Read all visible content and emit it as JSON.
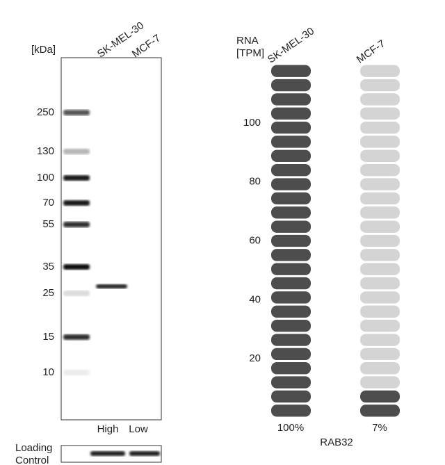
{
  "blot": {
    "unit_label": "[kDa]",
    "lanes": [
      "SK-MEL-30",
      "MCF-7"
    ],
    "markers": [
      "250",
      "130",
      "100",
      "70",
      "55",
      "35",
      "25",
      "15",
      "10"
    ],
    "levels": [
      "High",
      "Low"
    ],
    "loading_control": "Loading\nControl"
  },
  "rna": {
    "axis_label": "RNA\n[TPM]",
    "samples": [
      "SK-MEL-30",
      "MCF-7"
    ],
    "ticks": [
      "100",
      "80",
      "60",
      "40",
      "20"
    ],
    "percentages": [
      "100%",
      "7%"
    ],
    "gene": "RAB32"
  }
}
